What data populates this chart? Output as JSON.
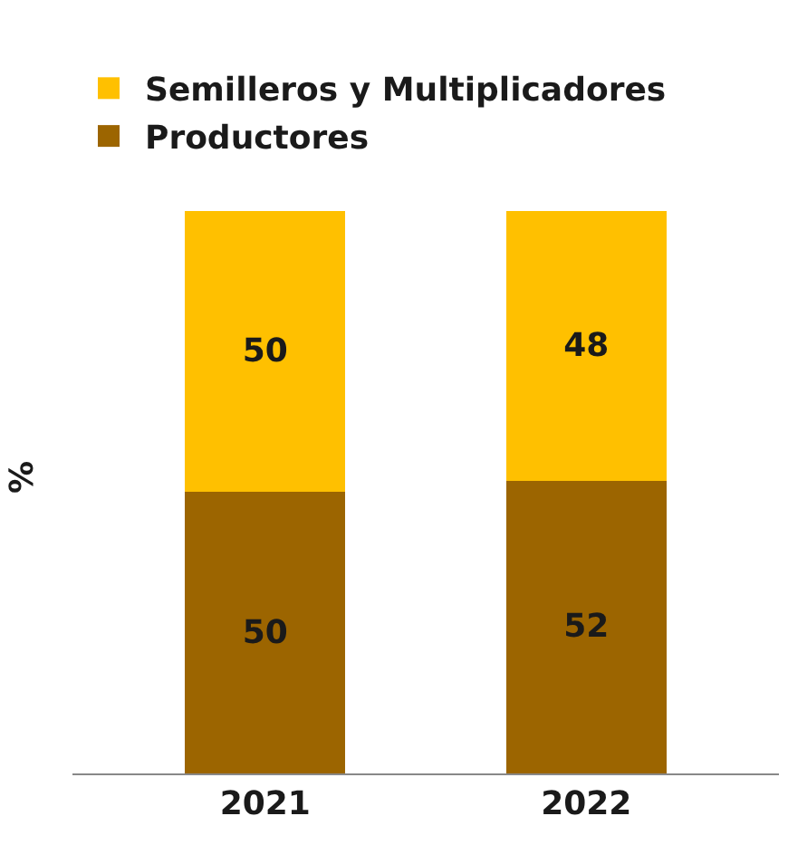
{
  "chart_data": {
    "type": "bar",
    "stacked": true,
    "ylabel": "%",
    "categories": [
      "2021",
      "2022"
    ],
    "series": [
      {
        "name": "Productores",
        "color": "#9c6500",
        "values": [
          50,
          52
        ]
      },
      {
        "name": "Semilleros y Multiplicadores",
        "color": "#ffc000",
        "values": [
          50,
          48
        ]
      }
    ],
    "data_labels": true,
    "legend": "top left",
    "tick_labels": "x"
  }
}
